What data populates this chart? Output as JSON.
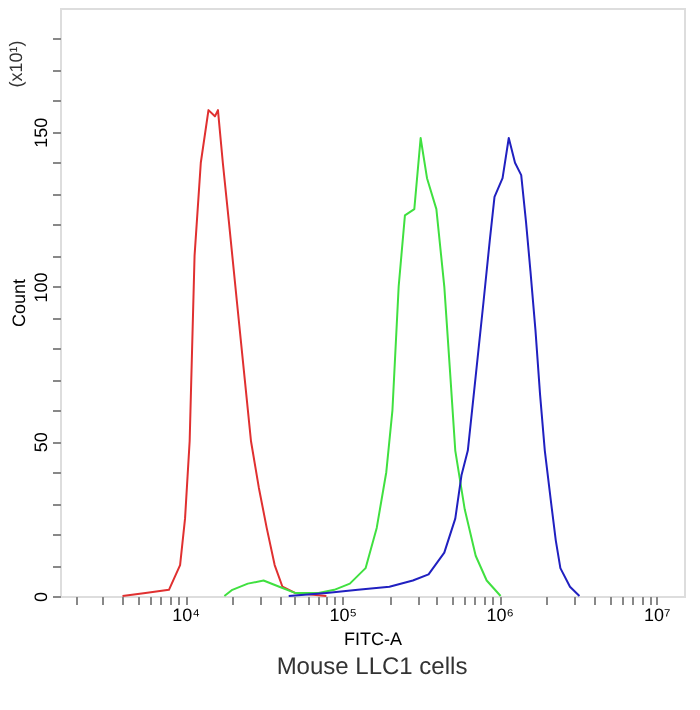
{
  "chart_data": {
    "type": "line",
    "title": "Mouse LLC1 cells",
    "xlabel": "FITC-A",
    "ylabel": "Count",
    "annotations": [
      "(x10¹)"
    ],
    "log": "x",
    "grid": false,
    "legend": false,
    "marker": "none",
    "line_style": "solid",
    "xlim": [
      1600,
      15000000
    ],
    "ylim": [
      0,
      190
    ],
    "xticks": [
      {
        "value": 2000,
        "label": null
      },
      {
        "value": 3000,
        "label": null
      },
      {
        "value": 4000,
        "label": null
      },
      {
        "value": 5000,
        "label": null
      },
      {
        "value": 6000,
        "label": null
      },
      {
        "value": 7000,
        "label": null
      },
      {
        "value": 8000,
        "label": null
      },
      {
        "value": 9000,
        "label": null
      },
      {
        "value": 10000,
        "label": "10⁴"
      },
      {
        "value": 20000,
        "label": null
      },
      {
        "value": 30000,
        "label": null
      },
      {
        "value": 40000,
        "label": null
      },
      {
        "value": 50000,
        "label": null
      },
      {
        "value": 60000,
        "label": null
      },
      {
        "value": 70000,
        "label": null
      },
      {
        "value": 80000,
        "label": null
      },
      {
        "value": 90000,
        "label": null
      },
      {
        "value": 100000,
        "label": "10⁵"
      },
      {
        "value": 200000,
        "label": null
      },
      {
        "value": 300000,
        "label": null
      },
      {
        "value": 400000,
        "label": null
      },
      {
        "value": 500000,
        "label": null
      },
      {
        "value": 600000,
        "label": null
      },
      {
        "value": 700000,
        "label": null
      },
      {
        "value": 800000,
        "label": null
      },
      {
        "value": 900000,
        "label": null
      },
      {
        "value": 1000000,
        "label": "10⁶"
      },
      {
        "value": 2000000,
        "label": null
      },
      {
        "value": 3000000,
        "label": null
      },
      {
        "value": 4000000,
        "label": null
      },
      {
        "value": 5000000,
        "label": null
      },
      {
        "value": 6000000,
        "label": null
      },
      {
        "value": 7000000,
        "label": null
      },
      {
        "value": 8000000,
        "label": null
      },
      {
        "value": 9000000,
        "label": null
      },
      {
        "value": 10000000,
        "label": "10⁷"
      }
    ],
    "yticks": [
      0,
      {
        "value": 10,
        "label": null
      },
      {
        "value": 20,
        "label": null
      },
      {
        "value": 30,
        "label": null
      },
      {
        "value": 40,
        "label": null
      },
      50,
      {
        "value": 60,
        "label": null
      },
      {
        "value": 70,
        "label": null
      },
      {
        "value": 80,
        "label": null
      },
      {
        "value": 90,
        "label": null
      },
      100,
      {
        "value": 110,
        "label": null
      },
      {
        "value": 120,
        "label": null
      },
      {
        "value": 130,
        "label": null
      },
      {
        "value": 140,
        "label": null
      },
      150,
      {
        "value": 160,
        "label": null
      },
      {
        "value": 170,
        "label": null
      },
      {
        "value": 180,
        "label": null
      }
    ],
    "series": [
      {
        "color": "#e03030",
        "x": [
          4000,
          5600,
          7900,
          9300,
          10000,
          10700,
          11500,
          12600,
          14100,
          15500,
          16200,
          17400,
          19100,
          21400,
          24000,
          26300,
          29500,
          33100,
          37200,
          41700,
          50100,
          79400
        ],
        "values": [
          0,
          1,
          2,
          10,
          25,
          50,
          110,
          140,
          157,
          155,
          157,
          140,
          120,
          95,
          70,
          50,
          35,
          22,
          10,
          3,
          1,
          0
        ]
      },
      {
        "color": "#40e040",
        "x": [
          17800,
          20000,
          25100,
          31600,
          39800,
          50100,
          70800,
          89100,
          112000,
          141000,
          166000,
          191000,
          209000,
          229000,
          251000,
          288000,
          316000,
          347000,
          398000,
          447000,
          490000,
          525000,
          603000,
          708000,
          832000,
          1020000
        ],
        "values": [
          0,
          2,
          4,
          5,
          3,
          1,
          1,
          2,
          4,
          9,
          22,
          40,
          60,
          100,
          123,
          125,
          148,
          135,
          125,
          100,
          70,
          47,
          28,
          13,
          5,
          0
        ]
      },
      {
        "color": "#2020c0",
        "x": [
          45700,
          79400,
          126000,
          200000,
          282000,
          355000,
          447000,
          525000,
          575000,
          631000,
          708000,
          794000,
          871000,
          933000,
          1050000,
          1150000,
          1260000,
          1380000,
          1480000,
          1580000,
          1700000,
          1820000,
          1950000,
          2140000,
          2290000,
          2450000,
          2820000,
          3240000
        ],
        "values": [
          0,
          1,
          2,
          3,
          5,
          7,
          14,
          25,
          39,
          47,
          71,
          95,
          115,
          129,
          135,
          148,
          140,
          136,
          121,
          105,
          86,
          65,
          47,
          30,
          18,
          9,
          3,
          0
        ]
      }
    ]
  }
}
